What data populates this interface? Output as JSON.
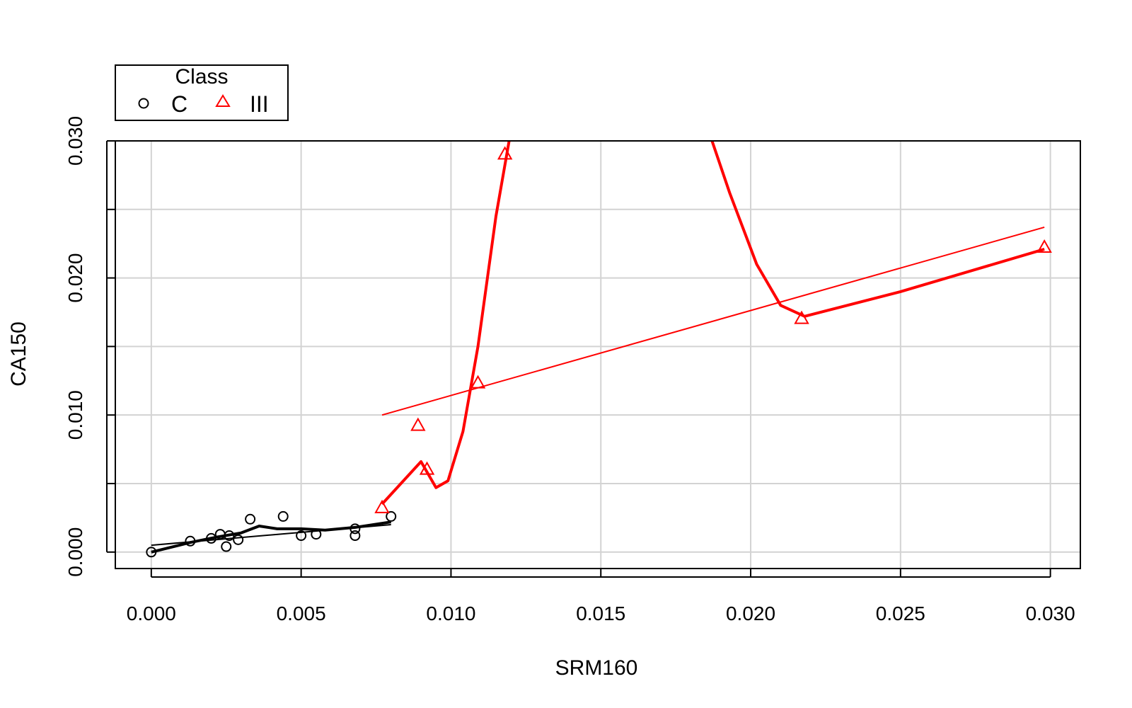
{
  "chart_data": {
    "type": "scatter",
    "xlabel": "SRM160",
    "ylabel": "CA150",
    "xlim": [
      -0.0012,
      0.031
    ],
    "ylim": [
      -0.0012,
      0.03
    ],
    "x_ticks": [
      "0.000",
      "0.005",
      "0.010",
      "0.015",
      "0.020",
      "0.025",
      "0.030"
    ],
    "y_ticks": [
      "0.000",
      "0.010",
      "0.020",
      "0.030"
    ],
    "grid": true,
    "legend": {
      "title": "Class",
      "placement": "top-left",
      "entries": [
        {
          "label": "C",
          "marker": "circle",
          "color": "#000000"
        },
        {
          "label": "III",
          "marker": "triangle",
          "color": "#ff0000"
        }
      ]
    },
    "series": [
      {
        "name": "C",
        "color": "#000000",
        "marker": "circle",
        "points": [
          {
            "x": 0.0,
            "y": 0.0
          },
          {
            "x": 0.0013,
            "y": 0.0008
          },
          {
            "x": 0.002,
            "y": 0.001
          },
          {
            "x": 0.0023,
            "y": 0.0013
          },
          {
            "x": 0.0025,
            "y": 0.0004
          },
          {
            "x": 0.0026,
            "y": 0.0012
          },
          {
            "x": 0.0029,
            "y": 0.0009
          },
          {
            "x": 0.0033,
            "y": 0.0024
          },
          {
            "x": 0.0044,
            "y": 0.0026
          },
          {
            "x": 0.005,
            "y": 0.0012
          },
          {
            "x": 0.0055,
            "y": 0.0013
          },
          {
            "x": 0.0068,
            "y": 0.0012
          },
          {
            "x": 0.0068,
            "y": 0.0017
          },
          {
            "x": 0.008,
            "y": 0.0026
          }
        ],
        "linear_fit": [
          {
            "x": 0.0,
            "y": 0.0005
          },
          {
            "x": 0.008,
            "y": 0.002
          }
        ],
        "smooth_fit": [
          {
            "x": 0.0,
            "y": 0.0
          },
          {
            "x": 0.0013,
            "y": 0.0007
          },
          {
            "x": 0.0022,
            "y": 0.0011
          },
          {
            "x": 0.003,
            "y": 0.0014
          },
          {
            "x": 0.0036,
            "y": 0.0019
          },
          {
            "x": 0.0042,
            "y": 0.0017
          },
          {
            "x": 0.005,
            "y": 0.0017
          },
          {
            "x": 0.0058,
            "y": 0.0016
          },
          {
            "x": 0.0068,
            "y": 0.0018
          },
          {
            "x": 0.008,
            "y": 0.0022
          }
        ]
      },
      {
        "name": "III",
        "color": "#ff0000",
        "marker": "triangle",
        "points": [
          {
            "x": 0.0077,
            "y": 0.0032
          },
          {
            "x": 0.0089,
            "y": 0.0092
          },
          {
            "x": 0.0092,
            "y": 0.006
          },
          {
            "x": 0.0109,
            "y": 0.0123
          },
          {
            "x": 0.0118,
            "y": 0.029
          },
          {
            "x": 0.0217,
            "y": 0.017
          },
          {
            "x": 0.0298,
            "y": 0.0222
          }
        ],
        "linear_fit": [
          {
            "x": 0.0077,
            "y": 0.01
          },
          {
            "x": 0.0298,
            "y": 0.0237
          }
        ],
        "smooth_fit": [
          {
            "x": 0.0077,
            "y": 0.0035
          },
          {
            "x": 0.009,
            "y": 0.0066
          },
          {
            "x": 0.0095,
            "y": 0.0047
          },
          {
            "x": 0.0099,
            "y": 0.0052
          },
          {
            "x": 0.0104,
            "y": 0.0088
          },
          {
            "x": 0.0109,
            "y": 0.015
          },
          {
            "x": 0.0115,
            "y": 0.0245
          },
          {
            "x": 0.0121,
            "y": 0.032
          },
          {
            "x": 0.0184,
            "y": 0.032
          },
          {
            "x": 0.0193,
            "y": 0.0262
          },
          {
            "x": 0.0202,
            "y": 0.021
          },
          {
            "x": 0.021,
            "y": 0.018
          },
          {
            "x": 0.0218,
            "y": 0.0172
          },
          {
            "x": 0.025,
            "y": 0.019
          },
          {
            "x": 0.0298,
            "y": 0.0221
          }
        ]
      }
    ]
  }
}
